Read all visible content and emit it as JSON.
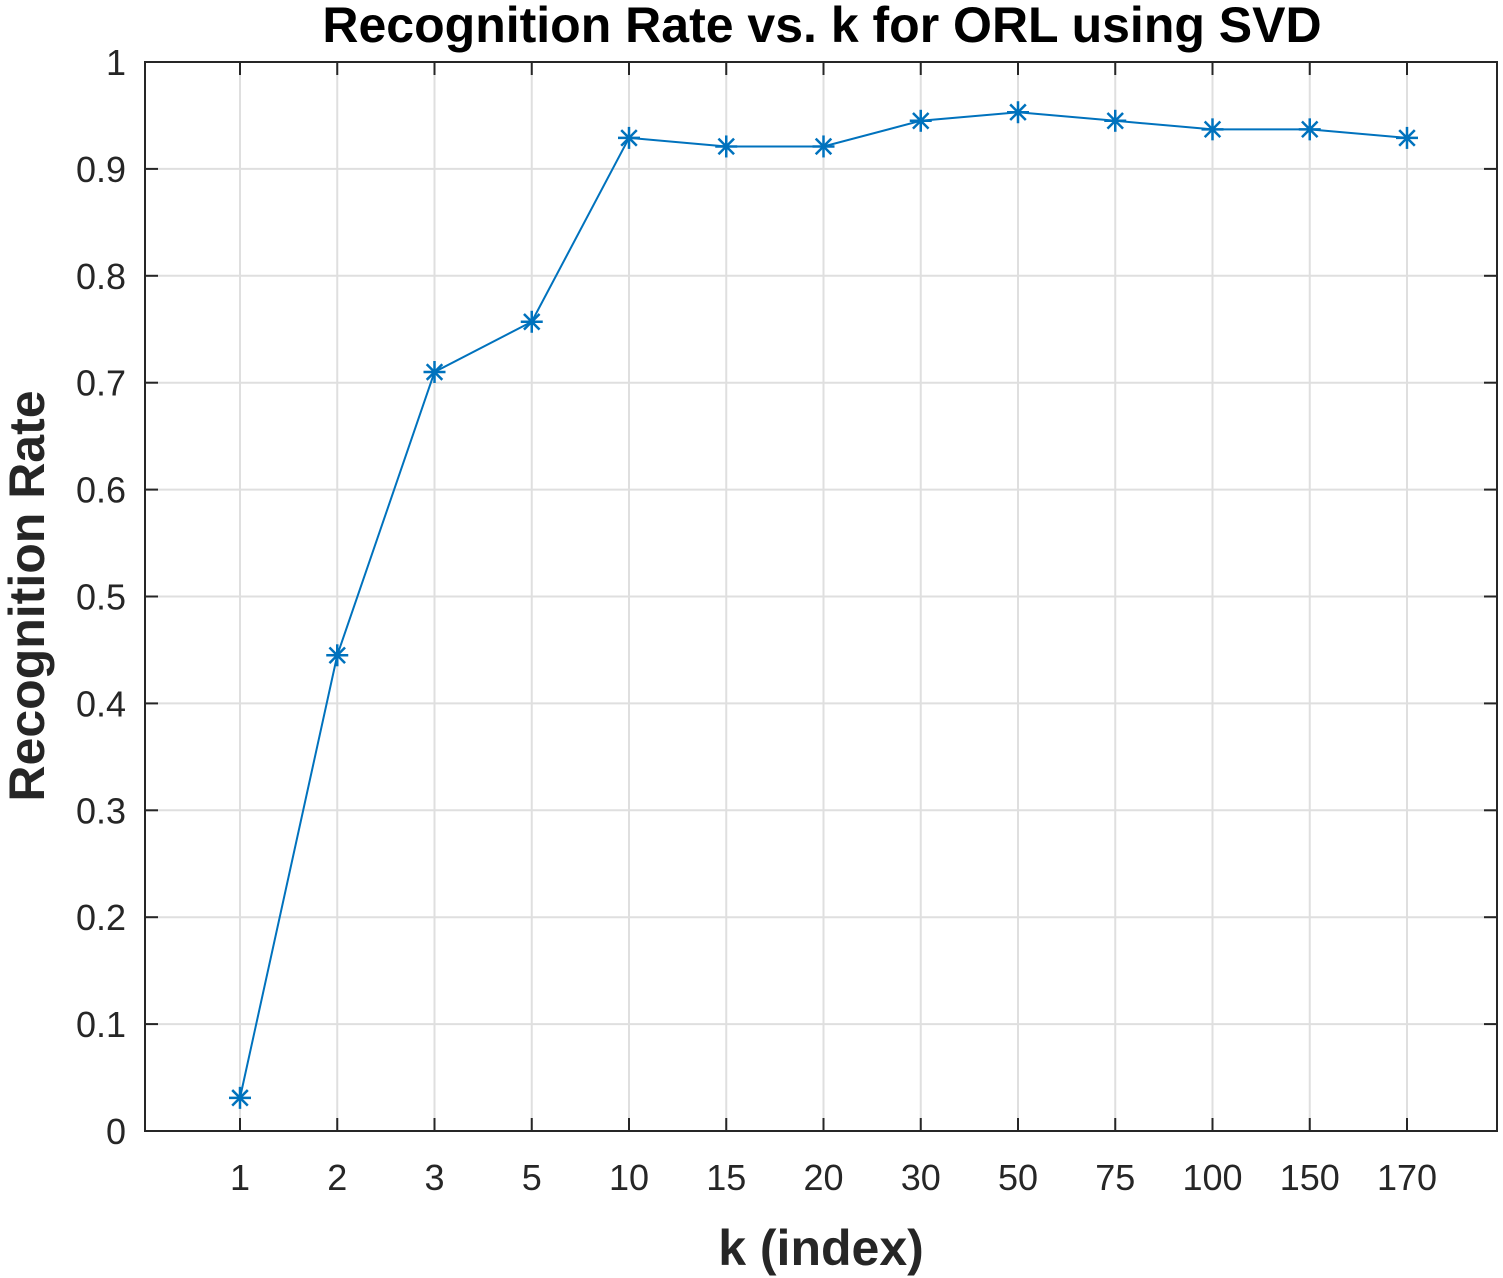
{
  "chart_data": {
    "type": "line",
    "title": "Recognition Rate vs. k for ORL using SVD",
    "xlabel": "k (index)",
    "ylabel": "Recognition Rate",
    "categories": [
      "1",
      "2",
      "3",
      "5",
      "10",
      "15",
      "20",
      "30",
      "50",
      "75",
      "100",
      "150",
      "170"
    ],
    "series": [
      {
        "values": [
          0.031,
          0.445,
          0.71,
          0.757,
          0.929,
          0.921,
          0.921,
          0.945,
          0.953,
          0.945,
          0.937,
          0.937,
          0.929
        ],
        "color": "#0072BD",
        "marker": "asterisk"
      }
    ],
    "ylim": [
      0,
      1
    ],
    "yticks": [
      "0",
      "0.1",
      "0.2",
      "0.3",
      "0.4",
      "0.5",
      "0.6",
      "0.7",
      "0.8",
      "0.9",
      "1"
    ],
    "grid": true,
    "legend": "none"
  }
}
